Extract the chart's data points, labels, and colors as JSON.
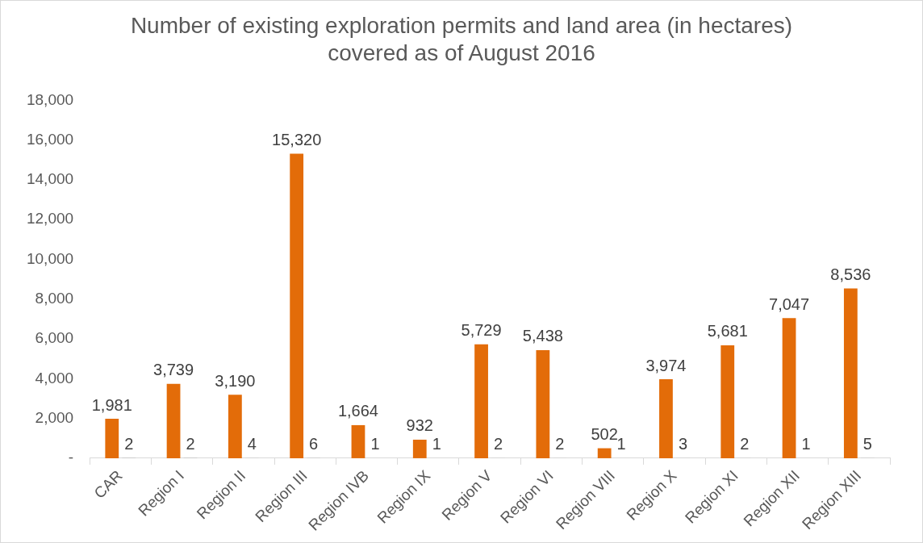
{
  "chart_data": {
    "type": "bar",
    "title": "Number of existing exploration permits and land area (in hectares) covered as of August 2016",
    "categories": [
      "CAR",
      "Region I",
      "Region II",
      "Region III",
      "Region IVB",
      "Region IX",
      "Region V",
      "Region VI",
      "Region VIII",
      "Region X",
      "Region XI",
      "Region XII",
      "Region XIII"
    ],
    "series": [
      {
        "color": "#e36c09",
        "values": [
          1981,
          3739,
          3190,
          15320,
          1664,
          932,
          5729,
          5438,
          502,
          3974,
          5681,
          7047,
          8536
        ],
        "value_labels": [
          "1,981",
          "3,739",
          "3,190",
          "15,320",
          "1,664",
          "932",
          "5,729",
          "5,438",
          "502",
          "3,974",
          "5,681",
          "7,047",
          "8,536"
        ]
      },
      {
        "color": "#a5a5a5",
        "values": [
          2,
          2,
          4,
          6,
          1,
          1,
          2,
          2,
          1,
          3,
          2,
          1,
          5
        ],
        "value_labels": [
          "2",
          "2",
          "4",
          "6",
          "1",
          "1",
          "2",
          "2",
          "1",
          "3",
          "2",
          "1",
          "5"
        ]
      }
    ],
    "ylim": [
      0,
      18000
    ],
    "yticks": [
      {
        "value": 0,
        "label": "-"
      },
      {
        "value": 2000,
        "label": "2,000"
      },
      {
        "value": 4000,
        "label": "4,000"
      },
      {
        "value": 6000,
        "label": "6,000"
      },
      {
        "value": 8000,
        "label": "8,000"
      },
      {
        "value": 10000,
        "label": "10,000"
      },
      {
        "value": 12000,
        "label": "12,000"
      },
      {
        "value": 14000,
        "label": "14,000"
      },
      {
        "value": 16000,
        "label": "16,000"
      },
      {
        "value": 18000,
        "label": "18,000"
      }
    ],
    "grid": false,
    "legend": false
  }
}
